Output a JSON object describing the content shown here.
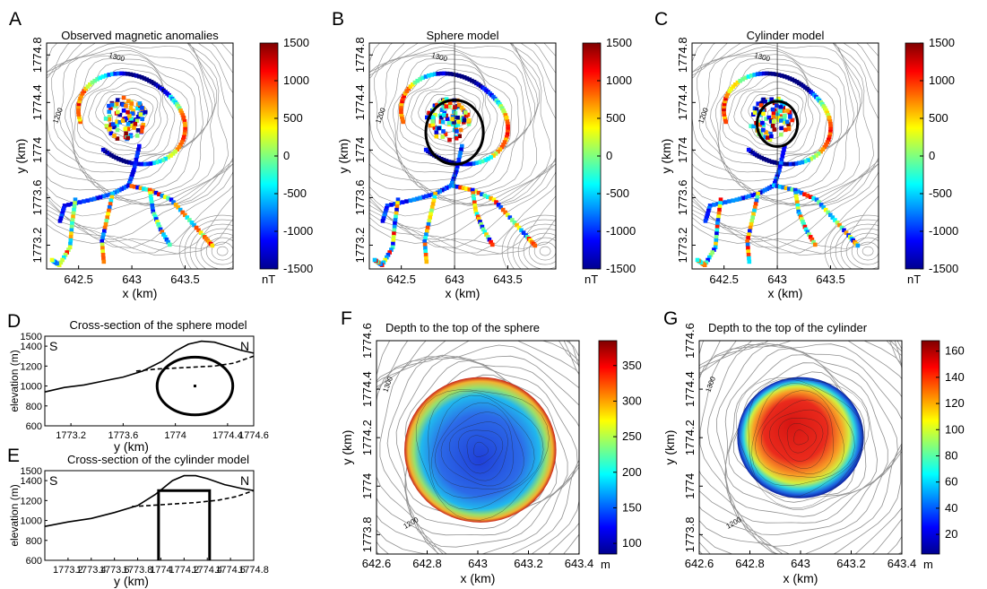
{
  "colormap_name": "jet",
  "chart_data": [
    {
      "id": "A",
      "type": "heatmap",
      "letter": "A",
      "title": "Observed magnetic anomalies",
      "xlabel": "x (km)",
      "ylabel": "y (km)",
      "xticks": [
        "642.5",
        "643",
        "643.5"
      ],
      "xtick_values": [
        642.5,
        643,
        643.5
      ],
      "yticks": [
        "1773.2",
        "1773.6",
        "1774",
        "1774.4",
        "1774.8"
      ],
      "ytick_values": [
        1773.2,
        1773.6,
        1774,
        1774.4,
        1774.8
      ],
      "xlim": [
        642.2,
        643.95
      ],
      "ylim": [
        1773.0,
        1774.9
      ],
      "contour_labels": [
        "1300",
        "1200"
      ],
      "colorbar": {
        "ticks": [
          "1500",
          "1000",
          "500",
          "0",
          "-500",
          "-1000",
          "-1500"
        ],
        "range": [
          -1500,
          1500
        ],
        "unit": "nT"
      }
    },
    {
      "id": "B",
      "type": "heatmap",
      "letter": "B",
      "title": "Sphere model",
      "xlabel": "x (km)",
      "ylabel": "y (km)",
      "xticks": [
        "642.5",
        "643",
        "643.5"
      ],
      "xtick_values": [
        642.5,
        643,
        643.5
      ],
      "yticks": [
        "1773.2",
        "1773.6",
        "1774",
        "1774.4",
        "1774.8"
      ],
      "ytick_values": [
        1773.2,
        1773.6,
        1774,
        1774.4,
        1774.8
      ],
      "xlim": [
        642.2,
        643.95
      ],
      "ylim": [
        1773.0,
        1774.9
      ],
      "contour_labels": [
        "1300",
        "1200",
        "1200"
      ],
      "model_circle": {
        "center_x": 643.0,
        "center_y": 1774.15,
        "radius_km": 0.27
      },
      "colorbar": {
        "ticks": [
          "1500",
          "1000",
          "500",
          "0",
          "-500",
          "-1000",
          "-1500"
        ],
        "range": [
          -1500,
          1500
        ],
        "unit": "nT"
      }
    },
    {
      "id": "C",
      "type": "heatmap",
      "letter": "C",
      "title": "Cylinder model",
      "xlabel": "x (km)",
      "ylabel": "y (km)",
      "xticks": [
        "642.5",
        "643",
        "643.5"
      ],
      "xtick_values": [
        642.5,
        643,
        643.5
      ],
      "yticks": [
        "1773.2",
        "1773.6",
        "1774",
        "1774.4",
        "1774.8"
      ],
      "ytick_values": [
        1773.2,
        1773.6,
        1774,
        1774.4,
        1774.8
      ],
      "xlim": [
        642.2,
        643.95
      ],
      "ylim": [
        1773.0,
        1774.9
      ],
      "contour_labels": [
        "1300",
        "1200",
        "1200"
      ],
      "model_circle": {
        "center_x": 643.0,
        "center_y": 1774.22,
        "radius_km": 0.19
      },
      "colorbar": {
        "ticks": [
          "1500",
          "1000",
          "500",
          "0",
          "-500",
          "-1000",
          "-1500"
        ],
        "range": [
          -1500,
          1500
        ],
        "unit": "nT"
      }
    },
    {
      "id": "D",
      "type": "line",
      "letter": "D",
      "title": "Cross-section of the sphere model",
      "xlabel": "y (km)",
      "ylabel": "elevation (m)",
      "xticks": [
        "1773.2",
        "1773.6",
        "1774",
        "1774.4",
        "1774.6"
      ],
      "xtick_values": [
        1773.2,
        1773.6,
        1774.0,
        1774.4,
        1774.6
      ],
      "yticks": [
        "1500",
        "1400",
        "1200",
        "1000",
        "800",
        "600"
      ],
      "ytick_values": [
        1500,
        1400,
        1200,
        1000,
        800,
        600
      ],
      "xlim": [
        1773.0,
        1774.6
      ],
      "ylim": [
        600,
        1500
      ],
      "side_labels": {
        "left": "S",
        "right": "N"
      },
      "series": [
        {
          "style": "solid",
          "x": [
            1773.0,
            1773.15,
            1773.3,
            1773.45,
            1773.6,
            1773.75,
            1773.9,
            1774.0,
            1774.1,
            1774.2,
            1774.3,
            1774.4,
            1774.5,
            1774.6
          ],
          "y": [
            940,
            985,
            1010,
            1050,
            1090,
            1150,
            1250,
            1350,
            1420,
            1450,
            1440,
            1400,
            1360,
            1330
          ]
        },
        {
          "style": "dashed",
          "x": [
            1773.7,
            1773.85,
            1774.0,
            1774.15,
            1774.3,
            1774.45,
            1774.6
          ],
          "y": [
            1150,
            1170,
            1180,
            1190,
            1200,
            1230,
            1300
          ]
        }
      ],
      "model": {
        "shape": "circle",
        "center_y": 1774.15,
        "center_elevation": 1000,
        "radius_m": 290
      }
    },
    {
      "id": "E",
      "type": "line",
      "letter": "E",
      "title": "Cross-section of the cylinder model",
      "xlabel": "y (km)",
      "ylabel": "elevation (m)",
      "xticks": [
        "1773.2",
        "1773.4",
        "1773.6",
        "1773.8",
        "1774",
        "1774.2",
        "1774.4",
        "1774.6",
        "1774.8"
      ],
      "xtick_values": [
        1773.2,
        1773.4,
        1773.6,
        1773.8,
        1774.0,
        1774.2,
        1774.4,
        1774.6,
        1774.8
      ],
      "visible_xticks": [
        "1773.2",
        "1773.6",
        "1774",
        "1774.4",
        "1774.8"
      ],
      "yticks": [
        "1500",
        "1400",
        "1200",
        "1000",
        "800",
        "600"
      ],
      "ytick_values": [
        1500,
        1400,
        1200,
        1000,
        800,
        600
      ],
      "xlim": [
        1773.0,
        1774.8
      ],
      "ylim": [
        600,
        1500
      ],
      "side_labels": {
        "left": "S",
        "right": "N"
      },
      "series": [
        {
          "style": "solid",
          "x": [
            1773.0,
            1773.2,
            1773.4,
            1773.6,
            1773.8,
            1773.95,
            1774.1,
            1774.2,
            1774.3,
            1774.4,
            1774.55,
            1774.7,
            1774.8
          ],
          "y": [
            940,
            985,
            1020,
            1080,
            1150,
            1260,
            1400,
            1450,
            1450,
            1420,
            1360,
            1320,
            1300
          ]
        },
        {
          "style": "dashed",
          "x": [
            1773.75,
            1773.9,
            1774.1,
            1774.3,
            1774.5,
            1774.65,
            1774.8
          ],
          "y": [
            1140,
            1150,
            1165,
            1180,
            1205,
            1240,
            1300
          ]
        }
      ],
      "model": {
        "shape": "rectangle",
        "y_min": 1773.98,
        "y_max": 1774.42,
        "top_elevation": 1300,
        "bottom_elevation": 600
      }
    },
    {
      "id": "F",
      "type": "heatmap",
      "letter": "F",
      "title": "Depth to the top of the sphere",
      "xlabel": "x (km)",
      "ylabel": "y (km)",
      "xticks": [
        "642.6",
        "642.8",
        "643",
        "643.2",
        "643.4"
      ],
      "xtick_values": [
        642.6,
        642.8,
        643,
        643.2,
        643.4
      ],
      "yticks": [
        "1773.8",
        "1774",
        "1774.2",
        "1774.4",
        "1774.6"
      ],
      "ytick_values": [
        1773.8,
        1774,
        1774.2,
        1774.4,
        1774.6
      ],
      "xlim": [
        642.6,
        643.4
      ],
      "ylim": [
        1773.72,
        1774.6
      ],
      "contour_labels": [
        "1300",
        "1200"
      ],
      "disk": {
        "center_x": 643.01,
        "center_y": 1774.15,
        "radius_km": 0.3
      },
      "colorbar": {
        "ticks": [
          "350",
          "300",
          "250",
          "200",
          "150",
          "100"
        ],
        "range": [
          85,
          385
        ],
        "unit": "m"
      }
    },
    {
      "id": "G",
      "type": "heatmap",
      "letter": "G",
      "title": "Depth to the top of the cylinder",
      "xlabel": "x (km)",
      "ylabel": "y (km)",
      "xticks": [
        "642.6",
        "642.8",
        "643",
        "643.2",
        "643.4"
      ],
      "xtick_values": [
        642.6,
        642.8,
        643,
        643.2,
        643.4
      ],
      "yticks": [
        "1773.8",
        "1774",
        "1774.2",
        "1774.4",
        "1774.6"
      ],
      "ytick_values": [
        1773.8,
        1774,
        1774.2,
        1774.4,
        1774.6
      ],
      "xlim": [
        642.6,
        643.4
      ],
      "ylim": [
        1773.72,
        1774.6
      ],
      "contour_labels": [
        "1300",
        "1200"
      ],
      "disk": {
        "center_x": 643.0,
        "center_y": 1774.2,
        "radius_km": 0.25
      },
      "colorbar": {
        "ticks": [
          "160",
          "140",
          "120",
          "100",
          "80",
          "60",
          "40",
          "20"
        ],
        "range": [
          5,
          168
        ],
        "unit": "m"
      }
    }
  ]
}
